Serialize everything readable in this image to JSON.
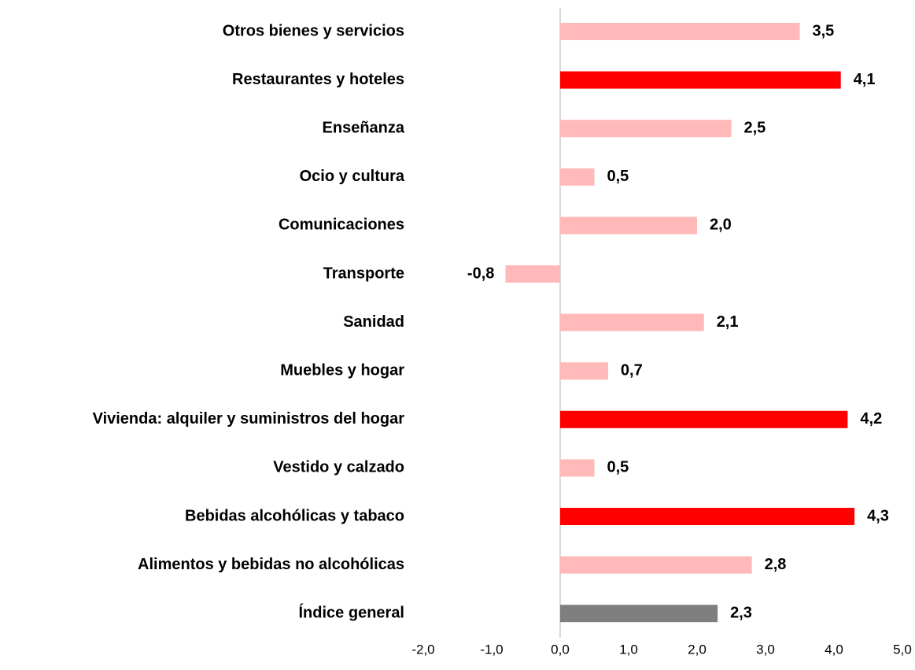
{
  "chart_data": {
    "type": "barh",
    "categories": [
      "Otros bienes y servicios",
      "Restaurantes y hoteles",
      "Enseñanza",
      "Ocio y cultura",
      "Comunicaciones",
      "Transporte",
      "Sanidad",
      "Muebles y hogar",
      "Vivienda: alquiler y suministros del hogar",
      "Vestido y calzado",
      "Bebidas alcohólicas y tabaco",
      "Alimentos y bebidas no alcohólicas",
      "Índice general"
    ],
    "values": [
      3.5,
      4.1,
      2.5,
      0.5,
      2.0,
      -0.8,
      2.1,
      0.7,
      4.2,
      0.5,
      4.3,
      2.8,
      2.3
    ],
    "value_labels": [
      "3,5",
      "4,1",
      "2,5",
      "0,5",
      "2,0",
      "-0,8",
      "2,1",
      "0,7",
      "4,2",
      "0,5",
      "4,3",
      "2,8",
      "2,3"
    ],
    "colors": [
      "#ffb9b9",
      "#ff0000",
      "#ffb9b9",
      "#ffb9b9",
      "#ffb9b9",
      "#ffb9b9",
      "#ffb9b9",
      "#ffb9b9",
      "#ff0000",
      "#ffb9b9",
      "#ff0000",
      "#ffb9b9",
      "#7f7f7f"
    ],
    "xlim": [
      -2,
      5
    ],
    "xticks": [
      {
        "value": -2,
        "label": "-2,0"
      },
      {
        "value": -1,
        "label": "-1,0"
      },
      {
        "value": 0,
        "label": "0,0"
      },
      {
        "value": 1,
        "label": "1,0"
      },
      {
        "value": 2,
        "label": "2,0"
      },
      {
        "value": 3,
        "label": "3,0"
      },
      {
        "value": 4,
        "label": "4,0"
      },
      {
        "value": 5,
        "label": "5,0"
      }
    ],
    "grid": false
  }
}
